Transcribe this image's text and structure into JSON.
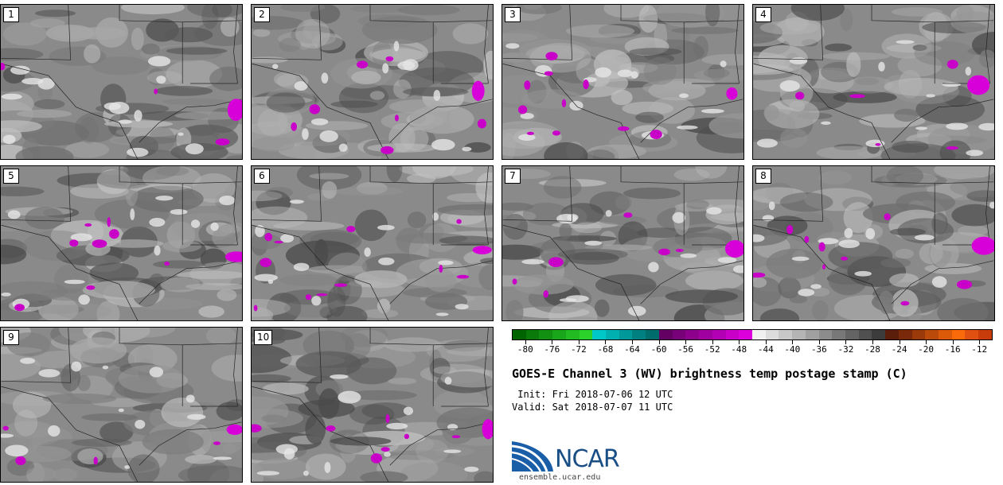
{
  "panels": [
    {
      "label": "1"
    },
    {
      "label": "2"
    },
    {
      "label": "3"
    },
    {
      "label": "4"
    },
    {
      "label": "5"
    },
    {
      "label": "6"
    },
    {
      "label": "7"
    },
    {
      "label": "8"
    },
    {
      "label": "9"
    },
    {
      "label": "10"
    }
  ],
  "colorbar": {
    "colors": [
      "#006400",
      "#0a7a0a",
      "#129012",
      "#1aa61a",
      "#22bc22",
      "#2ad22a",
      "#00c8c8",
      "#00b0b0",
      "#009898",
      "#008080",
      "#006c6c",
      "#640064",
      "#780078",
      "#8c008c",
      "#a000a0",
      "#b400b4",
      "#c800c8",
      "#dc00dc",
      "#f0f0f0",
      "#dcdcdc",
      "#c8c8c8",
      "#b4b4b4",
      "#a0a0a0",
      "#8c8c8c",
      "#787878",
      "#646464",
      "#505050",
      "#3c3c3c",
      "#5a1e0a",
      "#7a2a0a",
      "#9a3a0a",
      "#ba4a0a",
      "#da5a0a",
      "#fa6a0a",
      "#e05010",
      "#c83c0c"
    ],
    "tick_labels": [
      "-80",
      "-76",
      "-72",
      "-68",
      "-64",
      "-60",
      "-56",
      "-52",
      "-48",
      "-44",
      "-40",
      "-36",
      "-32",
      "-28",
      "-24",
      "-20",
      "-16",
      "-12"
    ],
    "tick_values": [
      -80,
      -76,
      -72,
      -68,
      -64,
      -60,
      -56,
      -52,
      -48,
      -44,
      -40,
      -36,
      -32,
      -28,
      -24,
      -20,
      -16,
      -12
    ],
    "min": -82,
    "max": -10
  },
  "title": "GOES-E Channel 3 (WV) brightness temp postage stamp (C)",
  "init_line": " Init: Fri 2018-07-06 12 UTC",
  "valid_line": "Valid: Sat 2018-07-07 11 UTC",
  "logo": {
    "text": "NCAR",
    "url": "ensemble.ucar.edu",
    "color": "#1a4f86"
  }
}
